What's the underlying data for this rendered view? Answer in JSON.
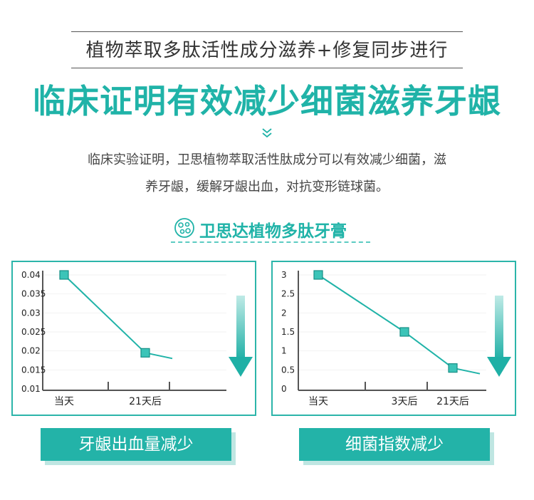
{
  "header": {
    "subtitle": "植物萃取多肽活性成分滋养+修复同步进行",
    "headline": "临床证明有效减少细菌滋养牙龈",
    "description_line1": "临床实验证明，卫思植物萃取活性肽成分可以有效减少细菌，滋",
    "description_line2": "养牙龈，缓解牙龈出血，对抗变形链球菌。"
  },
  "brand": {
    "name": "卫思达植物多肽牙膏",
    "icon": "molecule-icon"
  },
  "colors": {
    "accent": "#20b3a8",
    "caption_bg": "#23b3a8",
    "caption_shadow": "#bfe6e2"
  },
  "chart_data": [
    {
      "type": "line",
      "categories": [
        "当天",
        "21天后"
      ],
      "values": [
        0.04,
        0.0195
      ],
      "yticks": [
        "0.04",
        "0.035",
        "0.03",
        "0.025",
        "0.02",
        "0.015",
        "0.01"
      ],
      "ylim": [
        0.01,
        0.04
      ],
      "caption": "牙龈出血量减少"
    },
    {
      "type": "line",
      "categories": [
        "当天",
        "3天后",
        "21天后"
      ],
      "values": [
        3,
        1.5,
        0.55
      ],
      "yticks": [
        "3",
        "2.5",
        "2",
        "1.5",
        "1",
        "0.5",
        "0"
      ],
      "ylim": [
        0,
        3
      ],
      "caption": "细菌指数减少"
    }
  ]
}
